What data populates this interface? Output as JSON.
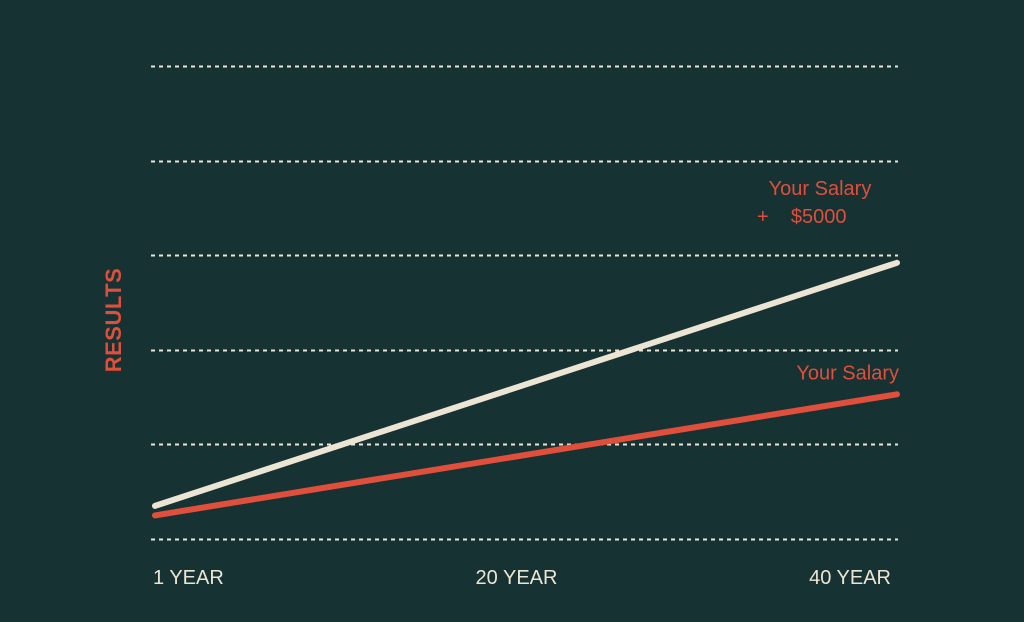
{
  "chart_data": {
    "type": "line",
    "title": "",
    "xlabel": "",
    "ylabel": "RESULTS",
    "x": [
      1,
      40
    ],
    "x_ticks": [
      {
        "value": 1,
        "label": "1 YEAR"
      },
      {
        "value": 20,
        "label": "20 YEAR"
      },
      {
        "value": 40,
        "label": "40 YEAR"
      }
    ],
    "xlim": [
      1,
      40
    ],
    "ylim": [
      0,
      5
    ],
    "grid": true,
    "grid_style": "dotted",
    "gridline_count": 6,
    "show_y_tick_labels": false,
    "series": [
      {
        "name": "Your Salary + $5000",
        "label_lines": [
          "Your Salary",
          "+    $5000"
        ],
        "values": [
          0.35,
          2.92
        ],
        "color": "#ece5d4"
      },
      {
        "name": "Your Salary",
        "label_lines": [
          "Your Salary"
        ],
        "values": [
          0.25,
          1.53
        ],
        "color": "#e04f3b"
      }
    ],
    "colors": {
      "background": "#163233",
      "grid": "#ece5d4",
      "tick_text": "#ece5d4",
      "accent": "#e04f3b"
    }
  }
}
